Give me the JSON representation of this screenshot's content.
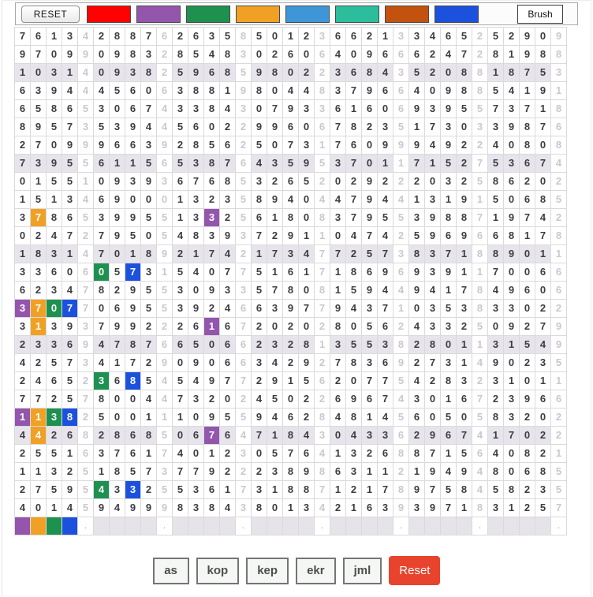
{
  "toolbar": {
    "reset_label": "RESET",
    "brush_label": "Brush",
    "swatches": [
      {
        "name": "red",
        "color": "#fe0202"
      },
      {
        "name": "purple",
        "color": "#9455ad"
      },
      {
        "name": "green",
        "color": "#1e9150"
      },
      {
        "name": "orange",
        "color": "#f0a125"
      },
      {
        "name": "light-blue",
        "color": "#3e96d9"
      },
      {
        "name": "teal",
        "color": "#2cbd9d"
      },
      {
        "name": "brown",
        "color": "#c2520e"
      },
      {
        "name": "blue",
        "color": "#1c51dd"
      }
    ]
  },
  "grid": {
    "columns": 35,
    "group_size": 5,
    "highlighted_rows": [
      3,
      8,
      13,
      18,
      23
    ],
    "digit_rows": [
      "76134288762635850123662133465252909",
      "97099098328548302606409666247281988",
      "10314093825968598022368435208818753",
      "63944456063881980448379664098854191",
      "65865306743384307933616069395573718",
      "89573539445602299606782351730339876",
      "27099966392856250731760999492240808",
      "73955611565387643595370117152753674",
      "01551093936768532652029222032586202",
      "15134690001323589404479441319150685",
      "37865399551332561808379553988719742",
      "02472795054839372911047425969668178",
      "18314701892174217347725738371889011",
      "33606057315407751617186969391170066",
      "62347829553093357808159449417849606",
      "37077069553924663977943710353833022",
      "31393799222616720202805624332509279",
      "23369478766506623281355382801131549",
      "42573417290906634292783692731490235",
      "24652368545497729156207754283231011",
      "77257800447320245022696743016723966",
      "11382500111095594628481456050583202",
      "44268286850676471843043362967417022",
      "25516376174012305764132688715640821",
      "11325185737792223898631121949480685",
      "27595433255361731887121789758458235",
      "40145949998384380134216393971831257"
    ],
    "paint_colors": {
      "purple": "#9455ad",
      "orange": "#f0a125",
      "green": "#1e9150",
      "blue": "#1c51dd"
    },
    "painted_cells": [
      {
        "row": 11,
        "col": 2,
        "color": "orange"
      },
      {
        "row": 11,
        "col": 13,
        "color": "purple"
      },
      {
        "row": 14,
        "col": 6,
        "color": "green"
      },
      {
        "row": 14,
        "col": 8,
        "color": "blue"
      },
      {
        "row": 16,
        "col": 1,
        "color": "purple"
      },
      {
        "row": 16,
        "col": 2,
        "color": "orange"
      },
      {
        "row": 16,
        "col": 3,
        "color": "green"
      },
      {
        "row": 16,
        "col": 4,
        "color": "blue"
      },
      {
        "row": 17,
        "col": 2,
        "color": "orange"
      },
      {
        "row": 17,
        "col": 13,
        "color": "purple"
      },
      {
        "row": 20,
        "col": 6,
        "color": "green"
      },
      {
        "row": 20,
        "col": 8,
        "color": "blue"
      },
      {
        "row": 22,
        "col": 1,
        "color": "purple"
      },
      {
        "row": 22,
        "col": 2,
        "color": "orange"
      },
      {
        "row": 22,
        "col": 3,
        "color": "green"
      },
      {
        "row": 22,
        "col": 4,
        "color": "blue"
      },
      {
        "row": 23,
        "col": 2,
        "color": "orange"
      },
      {
        "row": 23,
        "col": 13,
        "color": "purple"
      },
      {
        "row": 26,
        "col": 6,
        "color": "green"
      },
      {
        "row": 26,
        "col": 8,
        "color": "blue"
      }
    ],
    "bottom_row": {
      "swatches": [
        "purple",
        "orange",
        "green",
        "blue"
      ],
      "separator_mark": "."
    }
  },
  "footer": {
    "buttons": [
      "as",
      "kop",
      "kep",
      "ekr",
      "jml"
    ],
    "reset_label": "Reset",
    "reset_color": "#e8432c"
  }
}
